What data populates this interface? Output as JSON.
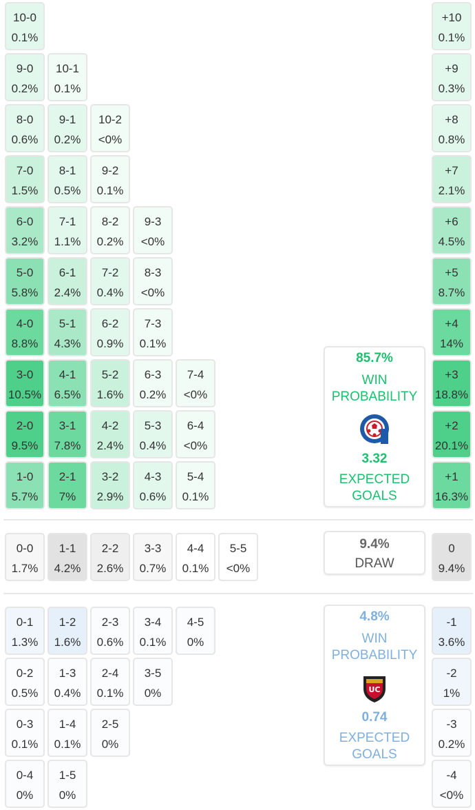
{
  "colors": {
    "home_accent": "#1ec070",
    "away_accent": "#7fb0dd",
    "home_scale": [
      "#f2fcf7",
      "#e3f8ed",
      "#c9f1dc",
      "#a9e9c7",
      "#8be1b3",
      "#6cd99f",
      "#4ecf8a"
    ],
    "away_scale": [
      "#fafcfe",
      "#f0f6fc",
      "#e6f0fa"
    ],
    "draw_scale": [
      "#ffffff",
      "#f7f7f7",
      "#efefef",
      "#e2e2e2"
    ]
  },
  "home": {
    "win_probability": "85.7%",
    "win_label_line1": "WIN",
    "win_label_line2": "PROBABILITY",
    "expected_goals": "3.32",
    "xg_label_line1": "EXPECTED",
    "xg_label_line2": "GOALS",
    "logo_icon": "home-club-crest-icon"
  },
  "draw": {
    "probability": "9.4%",
    "label": "DRAW"
  },
  "away": {
    "win_probability": "4.8%",
    "win_label_line1": "WIN",
    "win_label_line2": "PROBABILITY",
    "expected_goals": "0.74",
    "xg_label_line1": "EXPECTED",
    "xg_label_line2": "GOALS",
    "logo_icon": "away-club-crest-icon",
    "logo_text": "UC"
  },
  "home_rows": [
    [
      {
        "s": "10-0",
        "p": "0.1%",
        "t": 1
      }
    ],
    [
      {
        "s": "9-0",
        "p": "0.2%",
        "t": 1
      },
      {
        "s": "10-1",
        "p": "0.1%",
        "t": 0
      }
    ],
    [
      {
        "s": "8-0",
        "p": "0.6%",
        "t": 1
      },
      {
        "s": "9-1",
        "p": "0.2%",
        "t": 1
      },
      {
        "s": "10-2",
        "p": "<0%",
        "t": 0
      }
    ],
    [
      {
        "s": "7-0",
        "p": "1.5%",
        "t": 2
      },
      {
        "s": "8-1",
        "p": "0.5%",
        "t": 1
      },
      {
        "s": "9-2",
        "p": "0.1%",
        "t": 0
      }
    ],
    [
      {
        "s": "6-0",
        "p": "3.2%",
        "t": 3
      },
      {
        "s": "7-1",
        "p": "1.1%",
        "t": 1
      },
      {
        "s": "8-2",
        "p": "0.2%",
        "t": 0
      },
      {
        "s": "9-3",
        "p": "<0%",
        "t": 0
      }
    ],
    [
      {
        "s": "5-0",
        "p": "5.8%",
        "t": 4
      },
      {
        "s": "6-1",
        "p": "2.4%",
        "t": 2
      },
      {
        "s": "7-2",
        "p": "0.4%",
        "t": 1
      },
      {
        "s": "8-3",
        "p": "<0%",
        "t": 0
      }
    ],
    [
      {
        "s": "4-0",
        "p": "8.8%",
        "t": 5
      },
      {
        "s": "5-1",
        "p": "4.3%",
        "t": 3
      },
      {
        "s": "6-2",
        "p": "0.9%",
        "t": 1
      },
      {
        "s": "7-3",
        "p": "0.1%",
        "t": 0
      }
    ],
    [
      {
        "s": "3-0",
        "p": "10.5%",
        "t": 6
      },
      {
        "s": "4-1",
        "p": "6.5%",
        "t": 4
      },
      {
        "s": "5-2",
        "p": "1.6%",
        "t": 2
      },
      {
        "s": "6-3",
        "p": "0.2%",
        "t": 0
      },
      {
        "s": "7-4",
        "p": "<0%",
        "t": 0
      }
    ],
    [
      {
        "s": "2-0",
        "p": "9.5%",
        "t": 6
      },
      {
        "s": "3-1",
        "p": "7.8%",
        "t": 5
      },
      {
        "s": "4-2",
        "p": "2.4%",
        "t": 2
      },
      {
        "s": "5-3",
        "p": "0.4%",
        "t": 1
      },
      {
        "s": "6-4",
        "p": "<0%",
        "t": 0
      }
    ],
    [
      {
        "s": "1-0",
        "p": "5.7%",
        "t": 4
      },
      {
        "s": "2-1",
        "p": "7%",
        "t": 5
      },
      {
        "s": "3-2",
        "p": "2.9%",
        "t": 2
      },
      {
        "s": "4-3",
        "p": "0.6%",
        "t": 1
      },
      {
        "s": "5-4",
        "p": "0.1%",
        "t": 0
      }
    ]
  ],
  "home_margins": [
    {
      "s": "+10",
      "p": "0.1%",
      "t": 1
    },
    {
      "s": "+9",
      "p": "0.3%",
      "t": 1
    },
    {
      "s": "+8",
      "p": "0.8%",
      "t": 1
    },
    {
      "s": "+7",
      "p": "2.1%",
      "t": 2
    },
    {
      "s": "+6",
      "p": "4.5%",
      "t": 3
    },
    {
      "s": "+5",
      "p": "8.7%",
      "t": 4
    },
    {
      "s": "+4",
      "p": "14%",
      "t": 5
    },
    {
      "s": "+3",
      "p": "18.8%",
      "t": 6
    },
    {
      "s": "+2",
      "p": "20.1%",
      "t": 6
    },
    {
      "s": "+1",
      "p": "16.3%",
      "t": 5
    }
  ],
  "draw_row": [
    {
      "s": "0-0",
      "p": "1.7%",
      "t": 1
    },
    {
      "s": "1-1",
      "p": "4.2%",
      "t": 3
    },
    {
      "s": "2-2",
      "p": "2.6%",
      "t": 2
    },
    {
      "s": "3-3",
      "p": "0.7%",
      "t": 1
    },
    {
      "s": "4-4",
      "p": "0.1%",
      "t": 0
    },
    {
      "s": "5-5",
      "p": "<0%",
      "t": 0
    }
  ],
  "draw_margin": {
    "s": "0",
    "p": "9.4%",
    "t": 3
  },
  "away_rows": [
    [
      {
        "s": "0-1",
        "p": "1.3%",
        "t": 1
      },
      {
        "s": "1-2",
        "p": "1.6%",
        "t": 2
      },
      {
        "s": "2-3",
        "p": "0.6%",
        "t": 0
      },
      {
        "s": "3-4",
        "p": "0.1%",
        "t": 0
      },
      {
        "s": "4-5",
        "p": "0%",
        "t": 0
      }
    ],
    [
      {
        "s": "0-2",
        "p": "0.5%",
        "t": 0
      },
      {
        "s": "1-3",
        "p": "0.4%",
        "t": 0
      },
      {
        "s": "2-4",
        "p": "0.1%",
        "t": 0
      },
      {
        "s": "3-5",
        "p": "0%",
        "t": 0
      }
    ],
    [
      {
        "s": "0-3",
        "p": "0.1%",
        "t": 0
      },
      {
        "s": "1-4",
        "p": "0.1%",
        "t": 0
      },
      {
        "s": "2-5",
        "p": "0%",
        "t": 0
      }
    ],
    [
      {
        "s": "0-4",
        "p": "0%",
        "t": 0
      },
      {
        "s": "1-5",
        "p": "0%",
        "t": 0
      }
    ]
  ],
  "away_margins": [
    {
      "s": "-1",
      "p": "3.6%",
      "t": 2
    },
    {
      "s": "-2",
      "p": "1%",
      "t": 1
    },
    {
      "s": "-3",
      "p": "0.2%",
      "t": 0
    },
    {
      "s": "-4",
      "p": "<0%",
      "t": 0
    }
  ]
}
